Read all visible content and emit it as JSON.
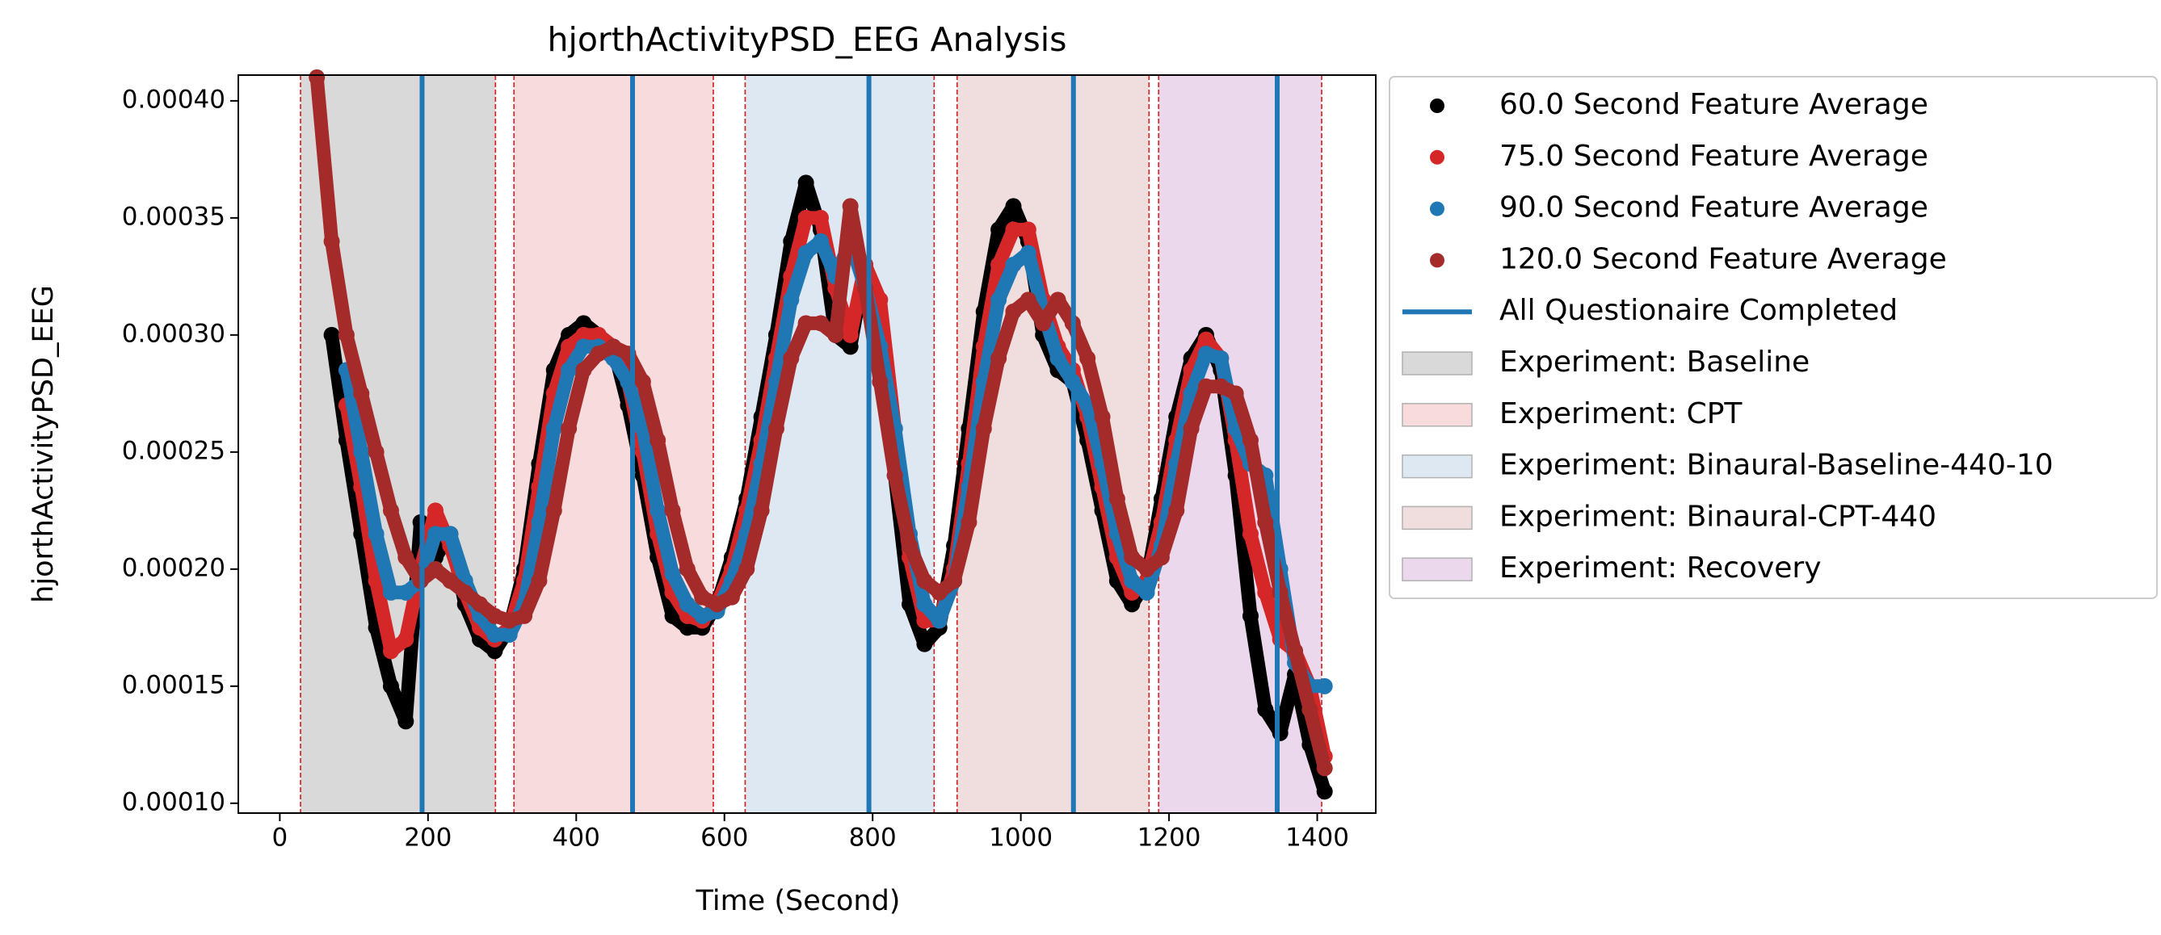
{
  "chart_data": {
    "type": "scatter",
    "title": "hjorthActivityPSD_EEG Analysis",
    "x_label": "Time (Second)",
    "y_label": "hjorthActivityPSD_EEG",
    "xlim": [
      -56,
      1479
    ],
    "ylim": [
      9.58e-05,
      0.000411
    ],
    "xticks": [
      0,
      200,
      400,
      600,
      800,
      1000,
      1200,
      1400
    ],
    "yticks": [
      {
        "value": 0.0001,
        "label": "0.00010"
      },
      0.00015,
      {
        "value": 0.0002,
        "label": "0.00020"
      },
      0.00025,
      {
        "value": 0.0003,
        "label": "0.00030"
      },
      0.00035,
      {
        "value": 0.0004,
        "label": "0.00040"
      }
    ],
    "legend": "outside-upper-right",
    "x": [
      50,
      70,
      90,
      110,
      130,
      150,
      170,
      190,
      210,
      230,
      250,
      270,
      290,
      310,
      330,
      350,
      370,
      390,
      410,
      430,
      450,
      470,
      490,
      510,
      530,
      550,
      570,
      590,
      610,
      630,
      650,
      670,
      690,
      710,
      730,
      750,
      770,
      790,
      810,
      830,
      850,
      870,
      890,
      910,
      930,
      950,
      970,
      990,
      1010,
      1030,
      1050,
      1070,
      1090,
      1110,
      1130,
      1150,
      1170,
      1190,
      1210,
      1230,
      1250,
      1270,
      1290,
      1310,
      1330,
      1350,
      1370,
      1390,
      1410
    ],
    "series": [
      {
        "name": "60.0 Second Feature Average",
        "color": "#000000",
        "values": [
          null,
          0.0003,
          0.000255,
          0.000215,
          0.000175,
          0.00015,
          0.000135,
          0.00022,
          0.000205,
          0.000215,
          0.000185,
          0.00017,
          0.000165,
          0.000175,
          0.0002,
          0.000245,
          0.000285,
          0.0003,
          0.000305,
          0.0003,
          0.000295,
          0.00027,
          0.00024,
          0.000205,
          0.00018,
          0.000175,
          0.000175,
          0.000185,
          0.000205,
          0.00023,
          0.000265,
          0.0003,
          0.00034,
          0.000365,
          0.000345,
          0.0003,
          0.000295,
          0.00033,
          0.0003,
          0.00024,
          0.000185,
          0.000168,
          0.000175,
          0.00021,
          0.00026,
          0.00031,
          0.000345,
          0.000355,
          0.00034,
          0.0003,
          0.000285,
          0.00028,
          0.000255,
          0.000225,
          0.000195,
          0.000185,
          0.000195,
          0.00023,
          0.000265,
          0.00029,
          0.0003,
          0.000285,
          0.00024,
          0.00018,
          0.00014,
          0.00013,
          0.000155,
          0.000125,
          0.000105
        ]
      },
      {
        "name": "75.0 Second Feature Average",
        "color": "#d62728",
        "values": [
          null,
          null,
          0.00027,
          0.000235,
          0.000195,
          0.000165,
          0.00017,
          0.0002,
          0.000225,
          0.00021,
          0.00019,
          0.000175,
          0.00017,
          0.000175,
          0.000195,
          0.000235,
          0.000275,
          0.000295,
          0.0003,
          0.0003,
          0.000295,
          0.00028,
          0.00025,
          0.000215,
          0.00019,
          0.00018,
          0.000178,
          0.000185,
          0.0002,
          0.000225,
          0.000255,
          0.00029,
          0.000325,
          0.00035,
          0.00035,
          0.00032,
          0.0003,
          0.00033,
          0.000315,
          0.00026,
          0.000205,
          0.000178,
          0.000178,
          0.0002,
          0.000245,
          0.000295,
          0.00033,
          0.000345,
          0.000345,
          0.000315,
          0.000295,
          0.000285,
          0.000265,
          0.000235,
          0.000205,
          0.00019,
          0.000195,
          0.00022,
          0.000255,
          0.000285,
          0.000298,
          0.00029,
          0.000255,
          0.000215,
          0.00019,
          0.00017,
          0.000165,
          0.00015,
          0.00012
        ]
      },
      {
        "name": "90.0 Second Feature Average",
        "color": "#1f77b4",
        "values": [
          null,
          null,
          0.000285,
          0.00025,
          0.000215,
          0.00019,
          0.00019,
          0.000195,
          0.000215,
          0.000215,
          0.000195,
          0.00018,
          0.000172,
          0.000172,
          0.000185,
          0.00022,
          0.00026,
          0.000285,
          0.000295,
          0.000295,
          0.00029,
          0.00028,
          0.00026,
          0.000225,
          0.000198,
          0.000185,
          0.00018,
          0.000182,
          0.000195,
          0.000215,
          0.000245,
          0.00028,
          0.000315,
          0.000335,
          0.00034,
          0.000325,
          0.00034,
          0.00032,
          0.000295,
          0.00026,
          0.000215,
          0.000185,
          0.000178,
          0.000195,
          0.000235,
          0.00028,
          0.000315,
          0.00033,
          0.000335,
          0.00031,
          0.00029,
          0.00028,
          0.00027,
          0.000245,
          0.000215,
          0.000195,
          0.00019,
          0.00021,
          0.000245,
          0.000275,
          0.000292,
          0.00029,
          0.00026,
          0.000245,
          0.00024,
          0.0002,
          0.00016,
          0.00015,
          0.00015
        ]
      },
      {
        "name": "120.0 Second Feature Average",
        "color": "#a52a2a",
        "values": [
          0.00041,
          0.00034,
          0.0003,
          0.000275,
          0.00025,
          0.000225,
          0.000205,
          0.000195,
          0.0002,
          0.000195,
          0.00019,
          0.000185,
          0.00018,
          0.000178,
          0.00018,
          0.000195,
          0.000225,
          0.00026,
          0.000285,
          0.000292,
          0.000295,
          0.000292,
          0.00028,
          0.000255,
          0.000225,
          0.0002,
          0.000188,
          0.000185,
          0.000188,
          0.0002,
          0.000225,
          0.00026,
          0.00029,
          0.000305,
          0.000305,
          0.0003,
          0.000355,
          0.00032,
          0.00028,
          0.00024,
          0.00021,
          0.000195,
          0.00019,
          0.000195,
          0.00022,
          0.00026,
          0.00029,
          0.00031,
          0.000315,
          0.000305,
          0.000315,
          0.000305,
          0.00029,
          0.000265,
          0.00023,
          0.000205,
          0.0002,
          0.000205,
          0.000225,
          0.00026,
          0.000278,
          0.000278,
          0.000275,
          0.000255,
          0.00022,
          0.00019,
          0.000165,
          0.00014,
          0.000115
        ]
      }
    ],
    "vlines": {
      "name": "All Questionaire Completed",
      "color": "#1f77b4",
      "x": [
        192,
        476,
        795,
        1071,
        1346
      ]
    },
    "regions": [
      {
        "name": "Experiment: Baseline",
        "start": 28,
        "end": 291,
        "color": "#d9d9d9"
      },
      {
        "name": "Experiment: CPT",
        "start": 316,
        "end": 585,
        "color": "#f8dbdd"
      },
      {
        "name": "Experiment: Binaural-Baseline-440-10",
        "start": 628,
        "end": 883,
        "color": "#dde8f3"
      },
      {
        "name": "Experiment: Binaural-CPT-440",
        "start": 914,
        "end": 1173,
        "color": "#f0dddd"
      },
      {
        "name": "Experiment: Recovery",
        "start": 1186,
        "end": 1406,
        "color": "#ebd8ec"
      }
    ],
    "region_edge_color": "#d62728"
  }
}
